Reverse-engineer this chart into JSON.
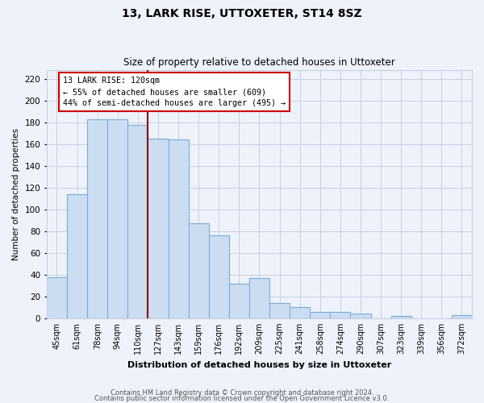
{
  "title": "13, LARK RISE, UTTOXETER, ST14 8SZ",
  "subtitle": "Size of property relative to detached houses in Uttoxeter",
  "xlabel": "Distribution of detached houses by size in Uttoxeter",
  "ylabel": "Number of detached properties",
  "categories": [
    "45sqm",
    "61sqm",
    "78sqm",
    "94sqm",
    "110sqm",
    "127sqm",
    "143sqm",
    "159sqm",
    "176sqm",
    "192sqm",
    "209sqm",
    "225sqm",
    "241sqm",
    "258sqm",
    "274sqm",
    "290sqm",
    "307sqm",
    "323sqm",
    "339sqm",
    "356sqm",
    "372sqm"
  ],
  "values": [
    38,
    114,
    183,
    183,
    178,
    165,
    164,
    87,
    76,
    32,
    37,
    14,
    10,
    6,
    6,
    4,
    0,
    2,
    0,
    0,
    3
  ],
  "bar_color": "#ccddf2",
  "bar_edge_color": "#7badd6",
  "vline_index": 5,
  "annotation_title": "13 LARK RISE: 120sqm",
  "annotation_line1": "← 55% of detached houses are smaller (609)",
  "annotation_line2": "44% of semi-detached houses are larger (495) →",
  "annotation_box_color": "#ffffff",
  "annotation_box_edge": "#cc0000",
  "vline_color": "#8b0000",
  "ylim": [
    0,
    228
  ],
  "yticks": [
    0,
    20,
    40,
    60,
    80,
    100,
    120,
    140,
    160,
    180,
    200,
    220
  ],
  "footer1": "Contains HM Land Registry data © Crown copyright and database right 2024.",
  "footer2": "Contains public sector information licensed under the Open Government Licence v3.0.",
  "bg_color": "#eef2fb",
  "grid_color": "#c8d0e0",
  "plot_bg_color": "#eef2fb"
}
